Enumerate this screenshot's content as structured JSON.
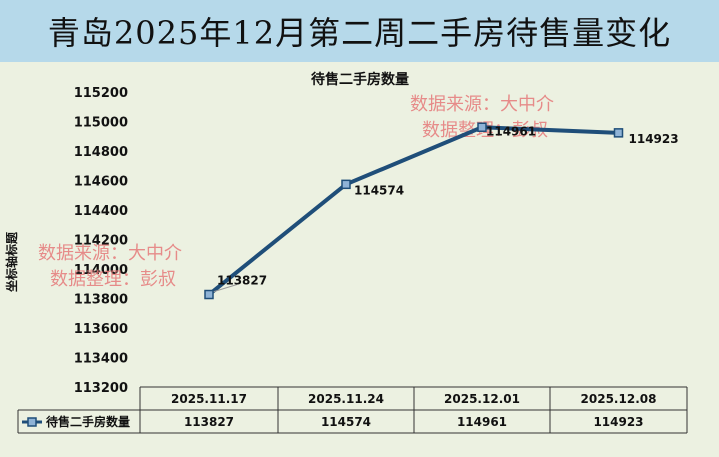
{
  "banner_title": "青岛2025年12月第二周二手房待售量变化",
  "watermark": {
    "line1": "数据来源：大中介",
    "line2": "数据整理：彭叔"
  },
  "colors": {
    "banner_bg": "#b6d9ea",
    "plot_bg": "#ecf1e1",
    "series_line": "#1f4e79",
    "marker_fill": "#8fb3d6",
    "watermark": "#e67a7a"
  },
  "chart_data": {
    "type": "line",
    "title": "待售二手房数量",
    "xlabel": "",
    "ylabel": "坐标轴标题",
    "categories": [
      "2025.11.17",
      "2025.11.24",
      "2025.12.01",
      "2025.12.08"
    ],
    "series": [
      {
        "name": "待售二手房数量",
        "values": [
          113827,
          114574,
          114961,
          114923
        ]
      }
    ],
    "ylim": [
      113200,
      115200
    ],
    "yticks": [
      113200,
      113400,
      113600,
      113800,
      114000,
      114200,
      114400,
      114600,
      114800,
      115000,
      115200
    ],
    "grid": false,
    "legend": "data-table",
    "data_labels": true
  }
}
